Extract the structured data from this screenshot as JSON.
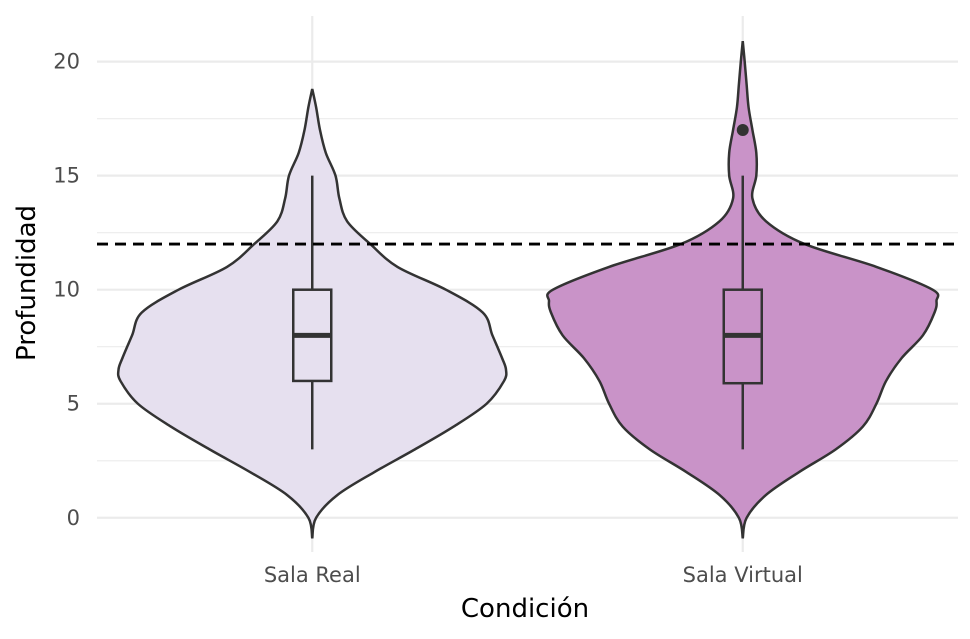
{
  "chart_data": {
    "type": "violin",
    "title": "",
    "xlabel": "Condición",
    "ylabel": "Profundidad",
    "categories": [
      "Sala Real",
      "Sala Virtual"
    ],
    "ylim": [
      -1.5,
      22
    ],
    "yticks": [
      0,
      5,
      10,
      15,
      20
    ],
    "grid": true,
    "reference_line": {
      "y": 12,
      "style": "dashed",
      "color": "#000000"
    },
    "series": [
      {
        "name": "Sala Real",
        "fill": "#E6E0EF",
        "boxplot": {
          "whisker_low": 3,
          "q1": 6,
          "median": 8,
          "q3": 10,
          "whisker_high": 15,
          "outliers": []
        },
        "density": [
          [
            -0.9,
            0.0
          ],
          [
            0.0,
            0.02
          ],
          [
            1.0,
            0.13
          ],
          [
            2.0,
            0.32
          ],
          [
            3.0,
            0.53
          ],
          [
            4.0,
            0.73
          ],
          [
            5.0,
            0.9
          ],
          [
            6.0,
            0.99
          ],
          [
            6.5,
            1.0
          ],
          [
            7.0,
            0.98
          ],
          [
            8.0,
            0.93
          ],
          [
            9.0,
            0.88
          ],
          [
            10.0,
            0.69
          ],
          [
            11.0,
            0.44
          ],
          [
            12.0,
            0.3
          ],
          [
            13.0,
            0.18
          ],
          [
            14.0,
            0.14
          ],
          [
            15.0,
            0.12
          ],
          [
            16.0,
            0.07
          ],
          [
            17.0,
            0.04
          ],
          [
            18.0,
            0.02
          ],
          [
            18.8,
            0.0
          ]
        ]
      },
      {
        "name": "Sala Virtual",
        "fill": "#C993C8",
        "boxplot": {
          "whisker_low": 3,
          "q1": 5.9,
          "median": 8,
          "q3": 10,
          "whisker_high": 15,
          "outliers": [
            17
          ]
        },
        "density": [
          [
            -0.9,
            0.0
          ],
          [
            0.0,
            0.02
          ],
          [
            1.0,
            0.12
          ],
          [
            2.0,
            0.29
          ],
          [
            3.0,
            0.48
          ],
          [
            4.0,
            0.62
          ],
          [
            5.0,
            0.69
          ],
          [
            6.0,
            0.74
          ],
          [
            7.0,
            0.82
          ],
          [
            8.0,
            0.93
          ],
          [
            9.0,
            0.99
          ],
          [
            9.5,
            1.0
          ],
          [
            10.0,
            0.98
          ],
          [
            11.0,
            0.69
          ],
          [
            12.0,
            0.32
          ],
          [
            13.0,
            0.12
          ],
          [
            14.0,
            0.05
          ],
          [
            15.0,
            0.07
          ],
          [
            16.0,
            0.07
          ],
          [
            17.0,
            0.05
          ],
          [
            18.0,
            0.03
          ],
          [
            19.0,
            0.02
          ],
          [
            20.0,
            0.01
          ],
          [
            20.9,
            0.0
          ]
        ]
      }
    ]
  }
}
